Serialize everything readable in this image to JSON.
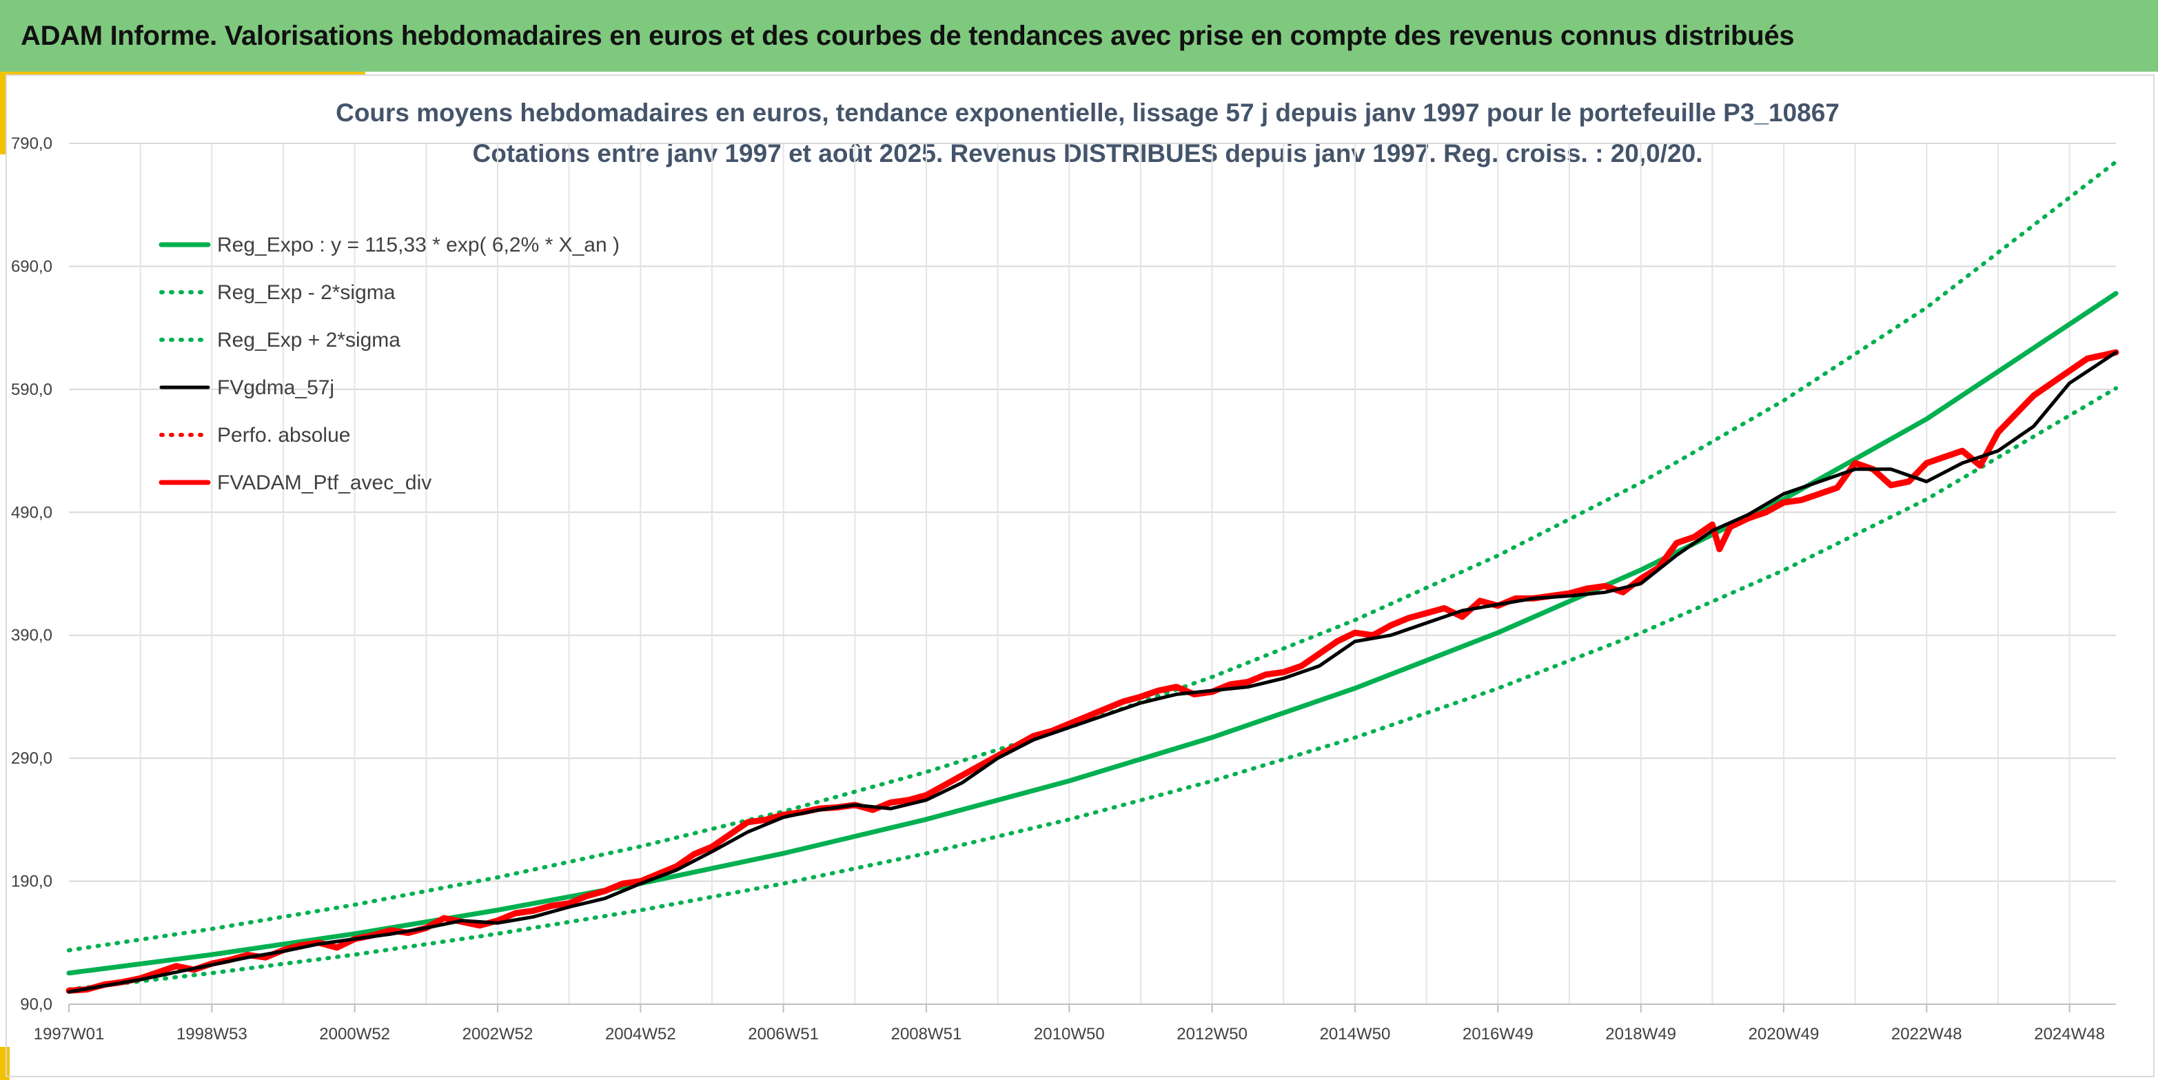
{
  "header": {
    "title": "ADAM Informe. Valorisations hebdomadaires en euros et des courbes de tendances avec prise en compte des revenus connus distribués"
  },
  "colors": {
    "header_bg": "#7fc97f",
    "accent": "#f2c200",
    "trend": "#00b050",
    "smooth": "#000000",
    "perf": "#ff0000"
  },
  "chart_data": {
    "type": "line",
    "title": "Cours moyens hebdomadaires en euros, tendance exponentielle, lissage 57 j depuis janv 1997 pour le portefeuille P3_10867",
    "subtitle": "Cotations entre janv 1997 et août 2025. Revenus DISTRIBUES depuis janv 1997. Reg. croiss. : 20,0/20.",
    "x_tick_labels": [
      "1997W01",
      "1998W53",
      "2000W52",
      "2002W52",
      "2004W52",
      "2006W51",
      "2008W51",
      "2010W50",
      "2012W50",
      "2014W50",
      "2016W49",
      "2018W49",
      "2020W49",
      "2022W48",
      "2024W48"
    ],
    "x_range": [
      1997.0,
      2025.65
    ],
    "y_tick_labels": [
      "90,0",
      "190,0",
      "290,0",
      "390,0",
      "490,0",
      "590,0",
      "690,0",
      "790,0"
    ],
    "y_range": [
      90,
      790
    ],
    "grid": true,
    "legend_position": "top-left",
    "series": [
      {
        "name": "Reg_Expo : y = 115,33 * exp( 6,2% *  X_an )",
        "style": "solid",
        "color": "#00b050",
        "x": [
          1997.0,
          1999.0,
          2001.0,
          2003.0,
          2005.0,
          2007.0,
          2009.0,
          2011.0,
          2013.0,
          2015.0,
          2017.0,
          2019.0,
          2021.0,
          2023.0,
          2025.65
        ],
        "y": [
          115.3,
          130.3,
          147.3,
          166.5,
          188.2,
          212.6,
          240.3,
          271.6,
          306.9,
          346.9,
          392.1,
          443.1,
          500.7,
          565.9,
          668.0
        ]
      },
      {
        "name": "Reg_Exp - 2*sigma",
        "style": "dotted",
        "color": "#00b050",
        "x": [
          1997.0,
          1999.0,
          2001.0,
          2003.0,
          2005.0,
          2007.0,
          2009.0,
          2011.0,
          2013.0,
          2015.0,
          2017.0,
          2019.0,
          2021.0,
          2023.0,
          2025.65
        ],
        "y": [
          102.0,
          115.3,
          130.3,
          147.3,
          166.4,
          188.1,
          212.6,
          240.2,
          271.5,
          306.8,
          346.8,
          391.9,
          442.9,
          500.6,
          590.8
        ]
      },
      {
        "name": "Reg_Exp + 2*sigma",
        "style": "dotted",
        "color": "#00b050",
        "x": [
          1997.0,
          1999.0,
          2001.0,
          2003.0,
          2005.0,
          2007.0,
          2009.0,
          2011.0,
          2013.0,
          2015.0,
          2017.0,
          2019.0,
          2021.0,
          2023.0,
          2025.65
        ],
        "y": [
          133.8,
          151.2,
          170.9,
          193.1,
          218.3,
          246.7,
          278.8,
          315.1,
          356.1,
          402.4,
          454.8,
          514.0,
          580.9,
          656.5,
          775.0
        ]
      },
      {
        "name": "FVgdma_57j",
        "style": "solid",
        "color": "#000000",
        "x": [
          1997.0,
          1997.5,
          1998.0,
          1998.5,
          1999.0,
          1999.5,
          2000.0,
          2000.5,
          2001.0,
          2001.5,
          2002.0,
          2002.5,
          2003.0,
          2003.5,
          2004.0,
          2004.5,
          2005.0,
          2005.5,
          2006.0,
          2006.5,
          2007.0,
          2007.5,
          2008.0,
          2008.5,
          2009.0,
          2009.5,
          2010.0,
          2010.5,
          2011.0,
          2011.5,
          2012.0,
          2012.5,
          2013.0,
          2013.5,
          2014.0,
          2014.5,
          2015.0,
          2015.5,
          2016.0,
          2016.5,
          2017.0,
          2017.5,
          2018.0,
          2018.5,
          2019.0,
          2019.5,
          2020.0,
          2020.5,
          2021.0,
          2021.5,
          2022.0,
          2022.5,
          2023.0,
          2023.5,
          2024.0,
          2024.5,
          2025.0,
          2025.65
        ],
        "y": [
          100,
          105,
          110,
          116,
          122,
          128,
          133,
          139,
          143,
          147,
          152,
          158,
          156,
          161,
          169,
          176,
          188,
          199,
          214,
          230,
          242,
          248,
          252,
          249,
          256,
          270,
          290,
          305,
          315,
          325,
          335,
          342,
          345,
          348,
          355,
          365,
          385,
          390,
          400,
          410,
          415,
          420,
          422,
          425,
          432,
          455,
          475,
          488,
          505,
          515,
          525,
          525,
          515,
          530,
          540,
          560,
          595,
          620
        ]
      },
      {
        "name": "Perfo. absolue",
        "style": "dotted",
        "color": "#ff0000",
        "x": [],
        "y": []
      },
      {
        "name": "FVADAM_Ptf_avec_div",
        "style": "solid",
        "color": "#ff0000",
        "x": [
          1997.0,
          1997.25,
          1997.5,
          1997.75,
          1998.0,
          1998.25,
          1998.5,
          1998.75,
          1999.0,
          1999.25,
          1999.5,
          1999.75,
          2000.0,
          2000.25,
          2000.5,
          2000.75,
          2001.0,
          2001.25,
          2001.5,
          2001.75,
          2002.0,
          2002.25,
          2002.5,
          2002.75,
          2003.0,
          2003.25,
          2003.5,
          2003.75,
          2004.0,
          2004.25,
          2004.5,
          2004.75,
          2005.0,
          2005.25,
          2005.5,
          2005.75,
          2006.0,
          2006.25,
          2006.5,
          2006.75,
          2007.0,
          2007.25,
          2007.5,
          2007.75,
          2008.0,
          2008.25,
          2008.5,
          2008.75,
          2009.0,
          2009.25,
          2009.5,
          2009.75,
          2010.0,
          2010.25,
          2010.5,
          2010.75,
          2011.0,
          2011.25,
          2011.5,
          2011.75,
          2012.0,
          2012.25,
          2012.5,
          2012.75,
          2013.0,
          2013.25,
          2013.5,
          2013.75,
          2014.0,
          2014.25,
          2014.5,
          2014.75,
          2015.0,
          2015.25,
          2015.5,
          2015.75,
          2016.0,
          2016.25,
          2016.5,
          2016.75,
          2017.0,
          2017.25,
          2017.5,
          2017.75,
          2018.0,
          2018.25,
          2018.5,
          2018.75,
          2019.0,
          2019.25,
          2019.5,
          2019.75,
          2020.0,
          2020.1,
          2020.25,
          2020.5,
          2020.75,
          2021.0,
          2021.25,
          2021.5,
          2021.75,
          2022.0,
          2022.25,
          2022.5,
          2022.75,
          2023.0,
          2023.25,
          2023.5,
          2023.75,
          2024.0,
          2024.25,
          2024.5,
          2024.75,
          2025.0,
          2025.25,
          2025.65
        ],
        "y": [
          101,
          102,
          106,
          108,
          111,
          116,
          121,
          118,
          123,
          126,
          130,
          128,
          134,
          138,
          140,
          136,
          143,
          146,
          150,
          148,
          152,
          160,
          157,
          154,
          158,
          164,
          166,
          170,
          172,
          178,
          182,
          188,
          190,
          196,
          202,
          212,
          218,
          228,
          238,
          240,
          244,
          246,
          249,
          250,
          252,
          248,
          254,
          256,
          260,
          268,
          276,
          284,
          292,
          300,
          308,
          312,
          318,
          324,
          330,
          336,
          340,
          345,
          348,
          342,
          344,
          350,
          352,
          358,
          360,
          365,
          375,
          385,
          392,
          390,
          398,
          404,
          408,
          412,
          405,
          418,
          414,
          420,
          420,
          422,
          424,
          428,
          430,
          425,
          436,
          445,
          465,
          470,
          480,
          460,
          478,
          485,
          490,
          498,
          500,
          505,
          510,
          530,
          525,
          512,
          515,
          530,
          535,
          540,
          528,
          555,
          570,
          585,
          595,
          605,
          615,
          620
        ]
      }
    ]
  }
}
